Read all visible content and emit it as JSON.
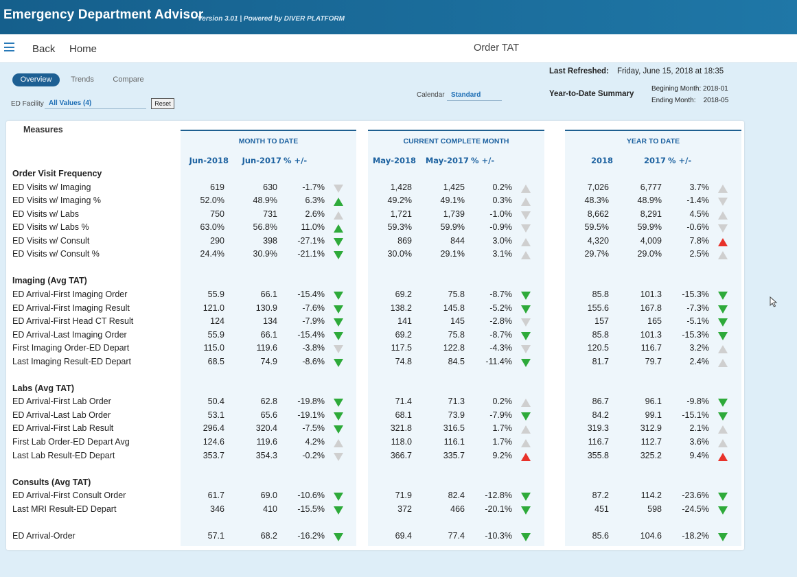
{
  "header": {
    "app_title": "Emergency Department Advisor",
    "version": "Version 3.01  |  Powered by DIVER PLATFORM"
  },
  "nav": {
    "back": "Back",
    "home": "Home",
    "page_title": "Order TAT"
  },
  "tabs": [
    {
      "label": "Overview",
      "active": true
    },
    {
      "label": "Trends",
      "active": false
    },
    {
      "label": "Compare",
      "active": false
    }
  ],
  "filters": {
    "facility_label": "ED Facility",
    "facility_value": "All Values (4)",
    "reset_label": "Reset",
    "calendar_label": "Calendar",
    "calendar_value": "Standard"
  },
  "info": {
    "refreshed_label": "Last Refreshed:",
    "refreshed_value": "Friday, June 15, 2018 at 18:35",
    "ytd_label": "Year-to-Date Summary",
    "begin_month": "Begining Month: 2018-01",
    "end_month": "Ending Month:    2018-05"
  },
  "colors": {
    "green": "#2eaa3a",
    "red": "#e8322a",
    "gray": "#cfcfcf",
    "header_blue": "#1d62a0"
  },
  "table": {
    "measures_label": "Measures",
    "groups": [
      {
        "title": "MONTH TO DATE",
        "cols": [
          "Jun-2018",
          "Jun-2017",
          "% +/-"
        ]
      },
      {
        "title": "CURRENT COMPLETE MONTH",
        "cols": [
          "May-2018",
          "May-2017",
          "% +/-"
        ]
      },
      {
        "title": "YEAR TO DATE",
        "cols": [
          "2018",
          "2017",
          "% +/-"
        ]
      }
    ],
    "sections": [
      {
        "title": "Order Visit Frequency",
        "rows": [
          {
            "label": "ED Visits w/ Imaging",
            "v": [
              [
                "619",
                "630",
                "-1.7%",
                "down-gray"
              ],
              [
                "1,428",
                "1,425",
                "0.2%",
                "up-gray"
              ],
              [
                "7,026",
                "6,777",
                "3.7%",
                "up-gray"
              ]
            ]
          },
          {
            "label": "ED Visits w/ Imaging %",
            "v": [
              [
                "52.0%",
                "48.9%",
                "6.3%",
                "up-green"
              ],
              [
                "49.2%",
                "49.1%",
                "0.3%",
                "up-gray"
              ],
              [
                "48.3%",
                "48.9%",
                "-1.4%",
                "down-gray"
              ]
            ]
          },
          {
            "label": "ED Visits w/ Labs",
            "v": [
              [
                "750",
                "731",
                "2.6%",
                "up-gray"
              ],
              [
                "1,721",
                "1,739",
                "-1.0%",
                "down-gray"
              ],
              [
                "8,662",
                "8,291",
                "4.5%",
                "up-gray"
              ]
            ]
          },
          {
            "label": "ED Visits w/ Labs %",
            "v": [
              [
                "63.0%",
                "56.8%",
                "11.0%",
                "up-green"
              ],
              [
                "59.3%",
                "59.9%",
                "-0.9%",
                "down-gray"
              ],
              [
                "59.5%",
                "59.9%",
                "-0.6%",
                "down-gray"
              ]
            ]
          },
          {
            "label": "ED Visits w/ Consult",
            "v": [
              [
                "290",
                "398",
                "-27.1%",
                "down-green"
              ],
              [
                "869",
                "844",
                "3.0%",
                "up-gray"
              ],
              [
                "4,320",
                "4,009",
                "7.8%",
                "up-red"
              ]
            ]
          },
          {
            "label": "ED Visits w/ Consult %",
            "v": [
              [
                "24.4%",
                "30.9%",
                "-21.1%",
                "down-green"
              ],
              [
                "30.0%",
                "29.1%",
                "3.1%",
                "up-gray"
              ],
              [
                "29.7%",
                "29.0%",
                "2.5%",
                "up-gray"
              ]
            ]
          }
        ]
      },
      {
        "title": "Imaging (Avg TAT)",
        "rows": [
          {
            "label": "ED Arrival-First Imaging Order",
            "v": [
              [
                "55.9",
                "66.1",
                "-15.4%",
                "down-green"
              ],
              [
                "69.2",
                "75.8",
                "-8.7%",
                "down-green"
              ],
              [
                "85.8",
                "101.3",
                "-15.3%",
                "down-green"
              ]
            ]
          },
          {
            "label": "ED Arrival-First Imaging Result",
            "v": [
              [
                "121.0",
                "130.9",
                "-7.6%",
                "down-green"
              ],
              [
                "138.2",
                "145.8",
                "-5.2%",
                "down-green"
              ],
              [
                "155.6",
                "167.8",
                "-7.3%",
                "down-green"
              ]
            ]
          },
          {
            "label": "ED Arrival-First Head CT Result",
            "v": [
              [
                "124",
                "134",
                "-7.9%",
                "down-green"
              ],
              [
                "141",
                "145",
                "-2.8%",
                "down-gray"
              ],
              [
                "157",
                "165",
                "-5.1%",
                "down-green"
              ]
            ]
          },
          {
            "label": "ED Arrival-Last Imaging Order",
            "v": [
              [
                "55.9",
                "66.1",
                "-15.4%",
                "down-green"
              ],
              [
                "69.2",
                "75.8",
                "-8.7%",
                "down-green"
              ],
              [
                "85.8",
                "101.3",
                "-15.3%",
                "down-green"
              ]
            ]
          },
          {
            "label": "First Imaging Order-ED Depart",
            "v": [
              [
                "115.0",
                "119.6",
                "-3.8%",
                "down-gray"
              ],
              [
                "117.5",
                "122.8",
                "-4.3%",
                "down-gray"
              ],
              [
                "120.5",
                "116.7",
                "3.2%",
                "up-gray"
              ]
            ]
          },
          {
            "label": "Last Imaging Result-ED Depart",
            "v": [
              [
                "68.5",
                "74.9",
                "-8.6%",
                "down-green"
              ],
              [
                "74.8",
                "84.5",
                "-11.4%",
                "down-green"
              ],
              [
                "81.7",
                "79.7",
                "2.4%",
                "up-gray"
              ]
            ]
          }
        ]
      },
      {
        "title": "Labs (Avg TAT)",
        "rows": [
          {
            "label": "ED Arrival-First Lab Order",
            "v": [
              [
                "50.4",
                "62.8",
                "-19.8%",
                "down-green"
              ],
              [
                "71.4",
                "71.3",
                "0.2%",
                "up-gray"
              ],
              [
                "86.7",
                "96.1",
                "-9.8%",
                "down-green"
              ]
            ]
          },
          {
            "label": "ED Arrival-Last Lab Order",
            "v": [
              [
                "53.1",
                "65.6",
                "-19.1%",
                "down-green"
              ],
              [
                "68.1",
                "73.9",
                "-7.9%",
                "down-green"
              ],
              [
                "84.2",
                "99.1",
                "-15.1%",
                "down-green"
              ]
            ]
          },
          {
            "label": "ED Arrival-First Lab Result",
            "v": [
              [
                "296.4",
                "320.4",
                "-7.5%",
                "down-green"
              ],
              [
                "321.8",
                "316.5",
                "1.7%",
                "up-gray"
              ],
              [
                "319.3",
                "312.9",
                "2.1%",
                "up-gray"
              ]
            ]
          },
          {
            "label": "First Lab Order-ED Depart Avg",
            "v": [
              [
                "124.6",
                "119.6",
                "4.2%",
                "up-gray"
              ],
              [
                "118.0",
                "116.1",
                "1.7%",
                "up-gray"
              ],
              [
                "116.7",
                "112.7",
                "3.6%",
                "up-gray"
              ]
            ]
          },
          {
            "label": "Last Lab Result-ED Depart",
            "v": [
              [
                "353.7",
                "354.3",
                "-0.2%",
                "down-gray"
              ],
              [
                "366.7",
                "335.7",
                "9.2%",
                "up-red"
              ],
              [
                "355.8",
                "325.2",
                "9.4%",
                "up-red"
              ]
            ]
          }
        ]
      },
      {
        "title": "Consults (Avg TAT)",
        "rows": [
          {
            "label": "ED Arrival-First Consult Order",
            "v": [
              [
                "61.7",
                "69.0",
                "-10.6%",
                "down-green"
              ],
              [
                "71.9",
                "82.4",
                "-12.8%",
                "down-green"
              ],
              [
                "87.2",
                "114.2",
                "-23.6%",
                "down-green"
              ]
            ]
          },
          {
            "label": "Last MRI Result-ED Depart",
            "v": [
              [
                "346",
                "410",
                "-15.5%",
                "down-green"
              ],
              [
                "372",
                "466",
                "-20.1%",
                "down-green"
              ],
              [
                "451",
                "598",
                "-24.5%",
                "down-green"
              ]
            ]
          }
        ]
      },
      {
        "title": "",
        "rows": [
          {
            "label": "ED Arrival-Order",
            "v": [
              [
                "57.1",
                "68.2",
                "-16.2%",
                "down-green"
              ],
              [
                "69.4",
                "77.4",
                "-10.3%",
                "down-green"
              ],
              [
                "85.6",
                "104.6",
                "-18.2%",
                "down-green"
              ]
            ]
          }
        ]
      }
    ]
  }
}
